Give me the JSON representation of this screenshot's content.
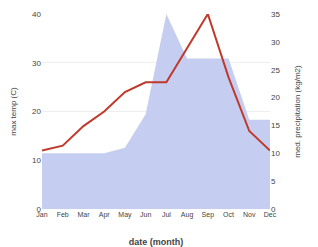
{
  "chart_data": {
    "type": "line",
    "xlabel": "date (month)",
    "ylabel": "max temp (C)",
    "y2label": "med. precipitation (kg/m2)",
    "categories": [
      "Jan",
      "Feb",
      "Mar",
      "Apr",
      "May",
      "Jun",
      "Jul",
      "Aug",
      "Sep",
      "Oct",
      "Nov",
      "Dec"
    ],
    "series": [
      {
        "type": "area",
        "axis": "y2",
        "color": "#c5cef0",
        "values": [
          10,
          10,
          10,
          10,
          11,
          17,
          35,
          27,
          27,
          27,
          16,
          16
        ]
      },
      {
        "type": "line",
        "axis": "y",
        "color": "#c0392b",
        "values": [
          12,
          13,
          17,
          20,
          24,
          26,
          26,
          33,
          40,
          27,
          16,
          12
        ]
      }
    ],
    "ylim": [
      0,
      40
    ],
    "yticks": [
      0,
      10,
      20,
      30,
      40
    ],
    "y2lim": [
      0,
      35
    ],
    "y2ticks": [
      0,
      5,
      10,
      15,
      20,
      25,
      30,
      35
    ],
    "grid": true
  }
}
